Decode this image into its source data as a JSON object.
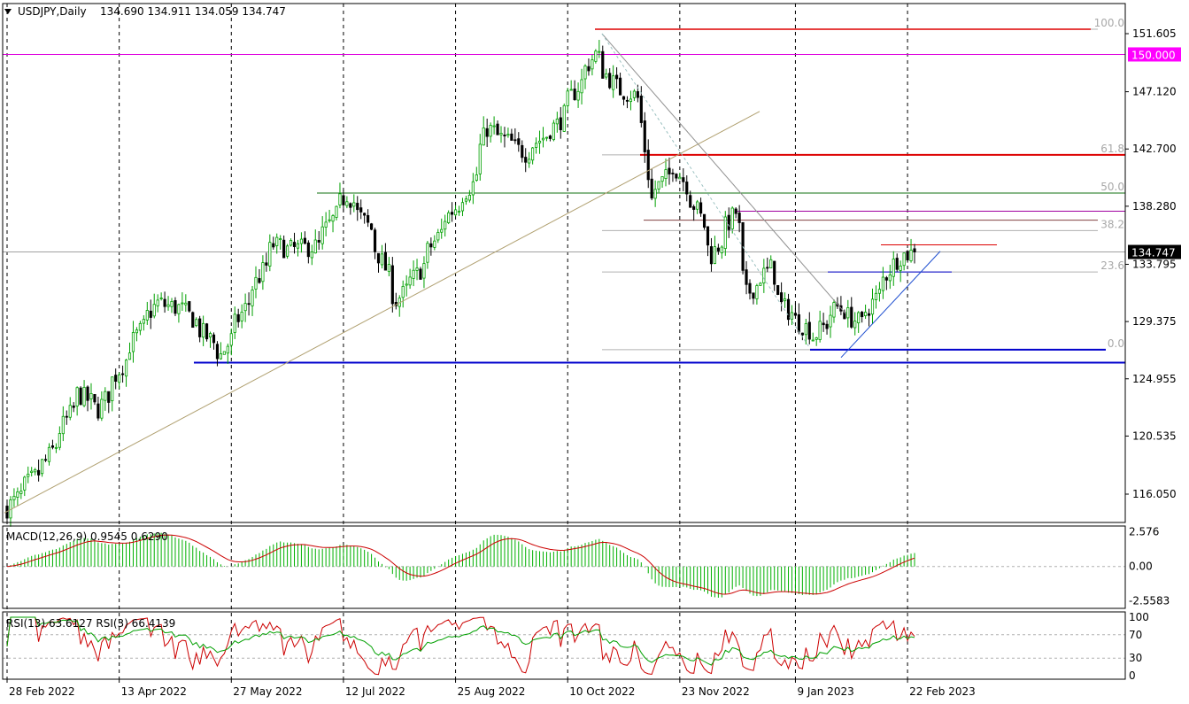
{
  "header": {
    "symbol": "USDJPY,Daily",
    "ohlc": "134.690 134.911 134.059 134.747"
  },
  "chart_data": [
    {
      "type": "candlestick",
      "symbol": "USDJPY",
      "timeframe": "Daily",
      "ylim": [
        113.0,
        153.0
      ],
      "price_ticks": [
        151.605,
        147.12,
        142.7,
        138.28,
        133.795,
        129.375,
        124.955,
        120.535,
        116.05
      ],
      "x_ticks": [
        "28 Feb 2022",
        "13 Apr 2022",
        "27 May 2022",
        "12 Jul 2022",
        "25 Aug 2022",
        "10 Oct 2022",
        "23 Nov 2022",
        "9 Jan 2023",
        "22 Feb 2023"
      ],
      "current_price": "134.747",
      "level_label": "150.000",
      "level_value": 150.0,
      "fibonacci": [
        {
          "label": "100.0",
          "value": 151.95
        },
        {
          "label": "61.8",
          "value": 142.25
        },
        {
          "label": "50.0",
          "value": 139.3
        },
        {
          "label": "38.2",
          "value": 136.4
        },
        {
          "label": "23.6",
          "value": 133.2
        },
        {
          "label": "0.0",
          "value": 127.2
        }
      ],
      "anchors": [
        {
          "date": "2022-02-28",
          "close": 115.0
        },
        {
          "date": "2022-03-15",
          "close": 118.6
        },
        {
          "date": "2022-03-28",
          "close": 123.8
        },
        {
          "date": "2022-04-05",
          "close": 122.6
        },
        {
          "date": "2022-04-20",
          "close": 128.3
        },
        {
          "date": "2022-04-28",
          "close": 130.8
        },
        {
          "date": "2022-05-09",
          "close": 130.3
        },
        {
          "date": "2022-05-24",
          "close": 126.8
        },
        {
          "date": "2022-06-01",
          "close": 130.0
        },
        {
          "date": "2022-06-14",
          "close": 135.3
        },
        {
          "date": "2022-06-20",
          "close": 134.9
        },
        {
          "date": "2022-07-01",
          "close": 135.2
        },
        {
          "date": "2022-07-13",
          "close": 139.2
        },
        {
          "date": "2022-07-22",
          "close": 136.5
        },
        {
          "date": "2022-08-02",
          "close": 131.0
        },
        {
          "date": "2022-08-10",
          "close": 133.0
        },
        {
          "date": "2022-08-22",
          "close": 137.4
        },
        {
          "date": "2022-09-01",
          "close": 140.0
        },
        {
          "date": "2022-09-07",
          "close": 144.3
        },
        {
          "date": "2022-09-22",
          "close": 142.4
        },
        {
          "date": "2022-10-05",
          "close": 144.6
        },
        {
          "date": "2022-10-20",
          "close": 150.0
        },
        {
          "date": "2022-10-28",
          "close": 147.5
        },
        {
          "date": "2022-11-07",
          "close": 146.6
        },
        {
          "date": "2022-11-11",
          "close": 138.8
        },
        {
          "date": "2022-11-21",
          "close": 141.5
        },
        {
          "date": "2022-11-30",
          "close": 138.0
        },
        {
          "date": "2022-12-06",
          "close": 134.5
        },
        {
          "date": "2022-12-15",
          "close": 137.8
        },
        {
          "date": "2022-12-20",
          "close": 131.5
        },
        {
          "date": "2022-12-29",
          "close": 133.5
        },
        {
          "date": "2023-01-03",
          "close": 130.6
        },
        {
          "date": "2023-01-16",
          "close": 128.2
        },
        {
          "date": "2023-01-25",
          "close": 130.5
        },
        {
          "date": "2023-02-03",
          "close": 129.2
        },
        {
          "date": "2023-02-10",
          "close": 131.5
        },
        {
          "date": "2023-02-17",
          "close": 134.2
        },
        {
          "date": "2023-02-24",
          "close": 134.747
        }
      ]
    },
    {
      "type": "macd",
      "label": "MACD(12,26,9) 0.9545 0.6290",
      "ylim": [
        -3.1,
        3.0
      ],
      "ticks": [
        "2.576",
        "0.00",
        "-2.5583"
      ],
      "tick_values": [
        2.576,
        0.0,
        -2.5583
      ],
      "main_color": "#00b000",
      "signal_color": "#cc0000"
    },
    {
      "type": "rsi",
      "label": "RSI(13) 63.6127  RSI(3) 66.4139",
      "ylim": [
        0,
        100
      ],
      "ticks": [
        "100",
        "70",
        "30",
        "0"
      ],
      "tick_values": [
        100,
        70,
        30,
        0
      ],
      "rsi13_color": "#00a000",
      "rsi3_color": "#cc0000"
    }
  ],
  "colors": {
    "candle_up": "#00a000",
    "candle_down": "#000000",
    "support_line": "#0000cc",
    "resistance_line": "#dd0000",
    "level_line": "#dd00dd",
    "fib_line": "#b0b0b0",
    "trend_line": "#b0a070",
    "magenta_tag": "#ff00ff"
  }
}
